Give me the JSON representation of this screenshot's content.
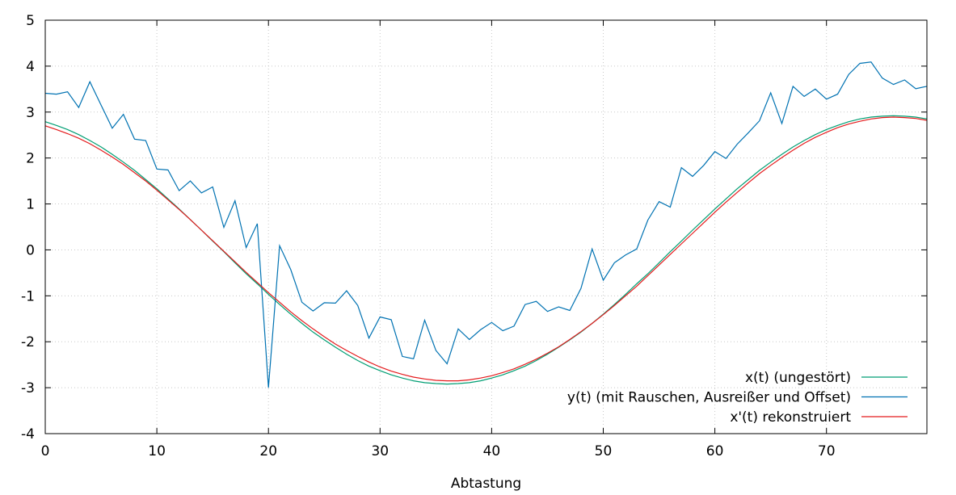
{
  "chart_data": {
    "type": "line",
    "title": "",
    "xlabel": "Abtastung",
    "ylabel": "",
    "xlim": [
      0,
      79
    ],
    "ylim": [
      -4,
      5
    ],
    "xticks": [
      0,
      10,
      20,
      30,
      40,
      50,
      60,
      70
    ],
    "yticks": [
      -4,
      -3,
      -2,
      -1,
      0,
      1,
      2,
      3,
      4,
      5
    ],
    "grid": true,
    "legend_position": "bottom-right",
    "x": [
      0,
      1,
      2,
      3,
      4,
      5,
      6,
      7,
      8,
      9,
      10,
      11,
      12,
      13,
      14,
      15,
      16,
      17,
      18,
      19,
      20,
      21,
      22,
      23,
      24,
      25,
      26,
      27,
      28,
      29,
      30,
      31,
      32,
      33,
      34,
      35,
      36,
      37,
      38,
      39,
      40,
      41,
      42,
      43,
      44,
      45,
      46,
      47,
      48,
      49,
      50,
      51,
      52,
      53,
      54,
      55,
      56,
      57,
      58,
      59,
      60,
      61,
      62,
      63,
      64,
      65,
      66,
      67,
      68,
      69,
      70,
      71,
      72,
      73,
      74,
      75,
      76,
      77,
      78,
      79
    ],
    "series": [
      {
        "name": "x(t) (ungestört)",
        "color": "#009e73",
        "values": [
          2.79,
          2.71,
          2.62,
          2.51,
          2.38,
          2.24,
          2.08,
          1.91,
          1.73,
          1.53,
          1.33,
          1.11,
          0.89,
          0.66,
          0.43,
          0.19,
          -0.04,
          -0.28,
          -0.52,
          -0.74,
          -0.97,
          -1.19,
          -1.4,
          -1.6,
          -1.79,
          -1.96,
          -2.12,
          -2.27,
          -2.41,
          -2.53,
          -2.63,
          -2.72,
          -2.79,
          -2.85,
          -2.89,
          -2.91,
          -2.92,
          -2.91,
          -2.89,
          -2.85,
          -2.79,
          -2.72,
          -2.63,
          -2.53,
          -2.41,
          -2.27,
          -2.12,
          -1.96,
          -1.79,
          -1.6,
          -1.4,
          -1.19,
          -0.97,
          -0.74,
          -0.52,
          -0.28,
          -0.04,
          0.19,
          0.43,
          0.66,
          0.89,
          1.11,
          1.33,
          1.53,
          1.73,
          1.91,
          2.08,
          2.24,
          2.38,
          2.51,
          2.62,
          2.71,
          2.79,
          2.85,
          2.89,
          2.91,
          2.92,
          2.91,
          2.89,
          2.85
        ]
      },
      {
        "name": "y(t) (mit Rauschen, Ausreißer und Offset)",
        "color": "#0072b2",
        "values": [
          3.41,
          3.39,
          3.44,
          3.1,
          3.66,
          3.15,
          2.65,
          2.95,
          2.41,
          2.38,
          1.76,
          1.74,
          1.29,
          1.5,
          1.24,
          1.37,
          0.49,
          1.07,
          0.05,
          0.57,
          -3.0,
          0.09,
          -0.43,
          -1.14,
          -1.33,
          -1.15,
          -1.16,
          -0.89,
          -1.21,
          -1.92,
          -1.46,
          -1.52,
          -2.32,
          -2.37,
          -1.53,
          -2.19,
          -2.48,
          -1.72,
          -1.95,
          -1.74,
          -1.58,
          -1.76,
          -1.66,
          -1.19,
          -1.12,
          -1.34,
          -1.24,
          -1.32,
          -0.84,
          0.02,
          -0.66,
          -0.28,
          -0.11,
          0.02,
          0.65,
          1.05,
          0.93,
          1.79,
          1.6,
          1.84,
          2.14,
          1.99,
          2.3,
          2.55,
          2.81,
          3.42,
          2.75,
          3.56,
          3.34,
          3.5,
          3.28,
          3.39,
          3.82,
          4.06,
          4.09,
          3.74,
          3.6,
          3.7,
          3.51,
          3.56
        ]
      },
      {
        "name": "x'(t) rekonstruiert",
        "color": "#e41a1c",
        "values": [
          2.7,
          2.62,
          2.53,
          2.43,
          2.31,
          2.17,
          2.02,
          1.86,
          1.68,
          1.5,
          1.3,
          1.09,
          0.88,
          0.66,
          0.43,
          0.2,
          -0.03,
          -0.26,
          -0.49,
          -0.71,
          -0.93,
          -1.14,
          -1.35,
          -1.54,
          -1.72,
          -1.89,
          -2.05,
          -2.19,
          -2.32,
          -2.44,
          -2.55,
          -2.64,
          -2.71,
          -2.77,
          -2.81,
          -2.84,
          -2.85,
          -2.85,
          -2.83,
          -2.79,
          -2.74,
          -2.67,
          -2.59,
          -2.49,
          -2.38,
          -2.25,
          -2.11,
          -1.95,
          -1.78,
          -1.6,
          -1.41,
          -1.21,
          -1.0,
          -0.79,
          -0.56,
          -0.33,
          -0.1,
          0.13,
          0.36,
          0.59,
          0.82,
          1.04,
          1.25,
          1.46,
          1.66,
          1.84,
          2.01,
          2.17,
          2.32,
          2.45,
          2.56,
          2.66,
          2.74,
          2.8,
          2.85,
          2.88,
          2.89,
          2.88,
          2.86,
          2.82
        ]
      }
    ]
  }
}
